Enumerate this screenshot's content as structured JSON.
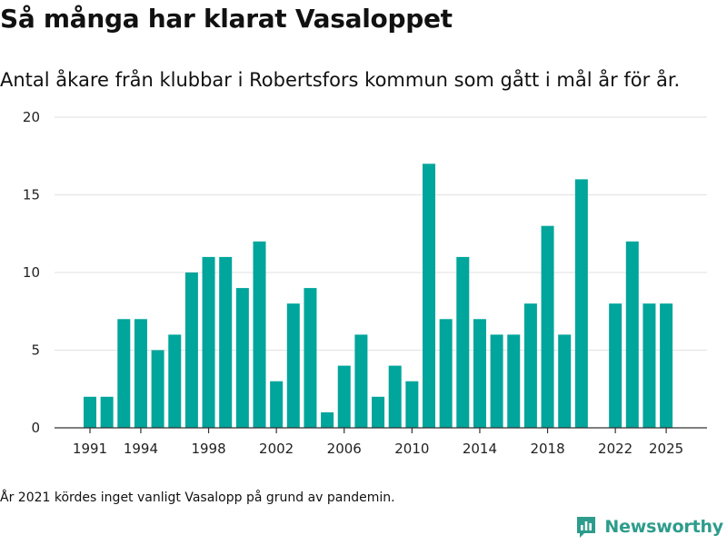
{
  "header": {
    "title": "Så många har klarat Vasaloppet",
    "subtitle": "Antal åkare från klubbar i Robertsfors kommun som gått i mål år för år."
  },
  "footnote": "År 2021 kördes inget vanligt Vasalopp på grund av pandemin.",
  "brand": {
    "name": "Newsworthy",
    "icon": "newsworthy-logo-icon",
    "color": "#2e9c8c"
  },
  "chart_data": {
    "type": "bar",
    "title": "Så många har klarat Vasaloppet",
    "subtitle": "Antal åkare från klubbar i Robertsfors kommun som gått i mål år för år.",
    "xlabel": "",
    "ylabel": "",
    "x": [
      1991,
      1992,
      1993,
      1994,
      1995,
      1996,
      1997,
      1998,
      1999,
      2000,
      2001,
      2002,
      2003,
      2004,
      2005,
      2006,
      2007,
      2008,
      2009,
      2010,
      2011,
      2012,
      2013,
      2014,
      2015,
      2016,
      2017,
      2018,
      2019,
      2020,
      2021,
      2022,
      2023,
      2024,
      2025
    ],
    "values": [
      2,
      2,
      7,
      7,
      5,
      6,
      10,
      11,
      11,
      9,
      12,
      3,
      8,
      9,
      1,
      4,
      6,
      2,
      4,
      3,
      17,
      7,
      11,
      7,
      6,
      6,
      8,
      13,
      6,
      16,
      null,
      8,
      12,
      8,
      8
    ],
    "x_ticks": [
      "1991",
      "1994",
      "1998",
      "2002",
      "2006",
      "2010",
      "2014",
      "2018",
      "2022",
      "2025"
    ],
    "ylim": [
      0,
      20
    ],
    "y_ticks": [
      "0",
      "5",
      "10",
      "15",
      "20"
    ],
    "bar_color": "#00a59b",
    "grid": true
  }
}
